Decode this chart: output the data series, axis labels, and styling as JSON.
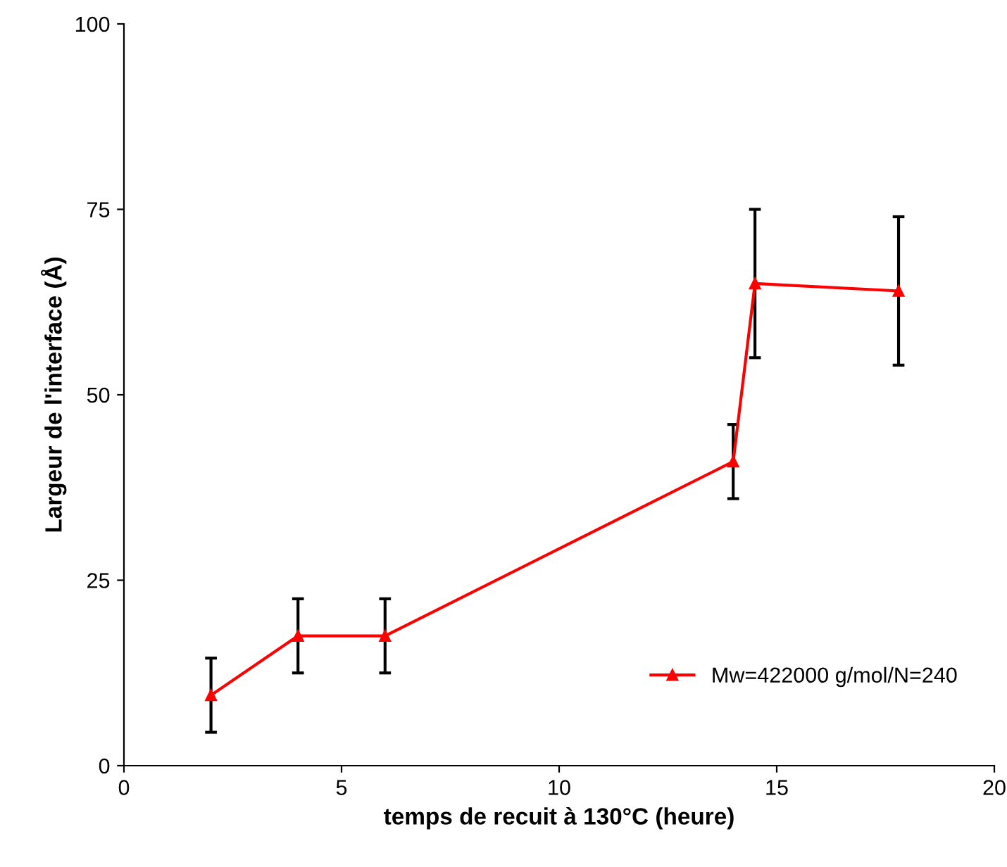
{
  "chart_data": {
    "type": "line",
    "xlabel": "temps de recuit à 130°C (heure)",
    "ylabel": "Largeur de l'interface (Å)",
    "x": [
      2,
      4,
      6,
      14,
      14.5,
      17.8
    ],
    "series": [
      {
        "name": "Mw=422000 g/mol/N=240",
        "color": "#ff0000",
        "values": [
          9.5,
          17.5,
          17.5,
          41,
          65,
          64
        ],
        "errors": [
          5,
          5,
          5,
          5,
          10,
          10
        ]
      }
    ],
    "xlim": [
      0,
      20
    ],
    "xticks": [
      0,
      5,
      10,
      15,
      20
    ],
    "ylim": [
      0,
      100
    ],
    "yticks": [
      0,
      25,
      50,
      75,
      100
    ],
    "grid": false,
    "legend": "bottom right",
    "marker": "triangle",
    "line_style": "solid"
  }
}
